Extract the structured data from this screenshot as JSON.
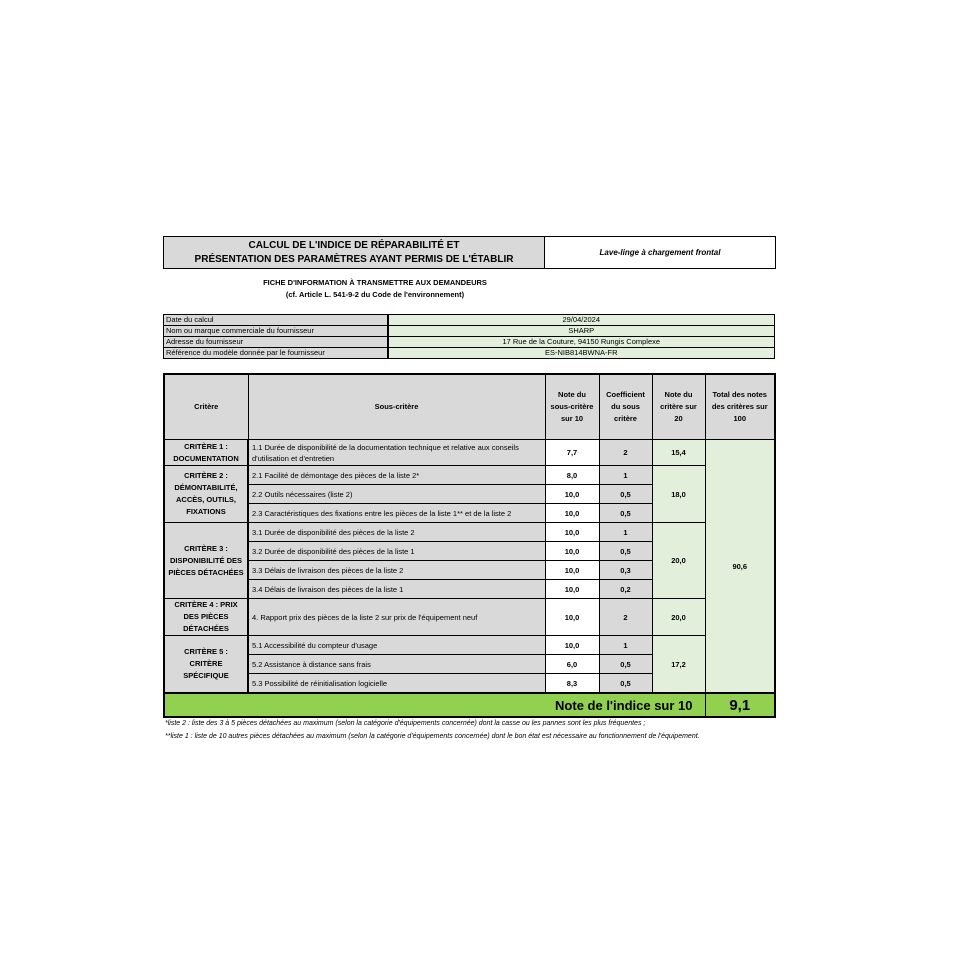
{
  "header": {
    "title_line1": "CALCUL DE L'INDICE DE RÉPARABILITÉ ET",
    "title_line2": "PRÉSENTATION DES PARAMÈTRES AYANT PERMIS DE L'ÉTABLIR",
    "product": "Lave-linge à chargement frontal"
  },
  "subtitle": {
    "line1": "FICHE D'INFORMATION À TRANSMETTRE AUX DEMANDEURS",
    "line2": "(cf. Article L. 541-9-2 du Code de l'environnement)"
  },
  "info": [
    {
      "label": "Date du calcul",
      "value": "29/04/2024"
    },
    {
      "label": "Nom ou marque commerciale du fournisseur",
      "value": "SHARP"
    },
    {
      "label": "Adresse du fournisseur",
      "value": "17 Rue de la Couture, 94150 Rungis Complexe"
    },
    {
      "label": "Référence du modèle donnée par le fournisseur",
      "value": "ES-NIB814BWNA-FR"
    }
  ],
  "columns": [
    "Critère",
    "Sous-critère",
    "Note du sous-critère sur 10",
    "Coefficient du sous critère",
    "Note du critère sur 20",
    "Total des notes des critères sur 100"
  ],
  "criteria": [
    {
      "name": "CRITÈRE 1 : DOCUMENTATION",
      "score": "15,4"
    },
    {
      "name": "CRITÈRE 2 : DÉMONTABILITÉ, ACCÈS, OUTILS, FIXATIONS",
      "score": "18,0"
    },
    {
      "name": "CRITÈRE 3 : DISPONIBILITÉ DES PIÈCES DÉTACHÉES",
      "score": "20,0"
    },
    {
      "name": "CRITÈRE 4 : PRIX DES PIÈCES DÉTACHÉES",
      "score": "20,0"
    },
    {
      "name": "CRITÈRE 5 : CRITÈRE SPÉCIFIQUE",
      "score": "17,2"
    }
  ],
  "sub": [
    {
      "label": "1.1 Durée de disponibilité de la documentation technique et relative aux conseils d'utilisation et d'entretien",
      "note": "7,7",
      "coef": "2"
    },
    {
      "label": "2.1 Facilité de démontage des pièces de la liste 2*",
      "note": "8,0",
      "coef": "1"
    },
    {
      "label": "2.2 Outils nécessaires (liste 2)",
      "note": "10,0",
      "coef": "0,5"
    },
    {
      "label": "2.3 Caractéristiques des fixations entre les pièces de la liste 1** et de la liste 2",
      "note": "10,0",
      "coef": "0,5"
    },
    {
      "label": "3.1 Durée de disponibilité des pièces de la liste 2",
      "note": "10,0",
      "coef": "1"
    },
    {
      "label": "3.2 Durée de disponibilité des pièces de la liste 1",
      "note": "10,0",
      "coef": "0,5"
    },
    {
      "label": "3.3 Délais de livraison des pièces de la liste 2",
      "note": "10,0",
      "coef": "0,3"
    },
    {
      "label": "3.4 Délais de livraison des pièces de la liste 1",
      "note": "10,0",
      "coef": "0,2"
    },
    {
      "label": "4. Rapport prix des pièces de la liste 2 sur prix de l'équipement neuf",
      "note": "10,0",
      "coef": "2"
    },
    {
      "label": "5.1 Accessibilité du compteur d'usage",
      "note": "10,0",
      "coef": "1"
    },
    {
      "label": "5.2 Assistance à distance sans frais",
      "note": "6,0",
      "coef": "0,5"
    },
    {
      "label": "5.3 Possibilité de réinitialisation logicielle",
      "note": "8,3",
      "coef": "0,5"
    }
  ],
  "total": "90,6",
  "final": {
    "label": "Note de l'indice sur 10",
    "value": "9,1"
  },
  "footnotes": [
    "*liste 2 : liste des 3 à 5 pièces détachées au maximum (selon la catégorie d'équipements concernée) dont la casse ou les pannes sont les plus fréquentes ;",
    "**liste 1 : liste de 10 autres pièces détachées au maximum (selon la catégorie d'équipements concernée) dont le bon état est nécessaire au fonctionnement de l'équipement."
  ],
  "colors": {
    "gray": "#d9d9d9",
    "light_green": "#e2efda",
    "green": "#92d050"
  }
}
